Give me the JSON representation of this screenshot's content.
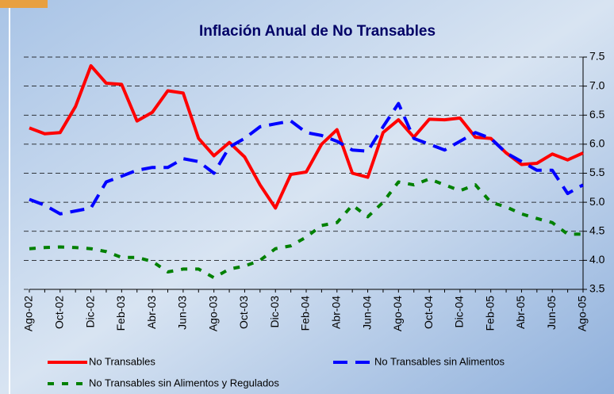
{
  "chart_data": {
    "type": "line",
    "title": "Inflación Anual de No Transables",
    "categories": [
      "Ago-02",
      null,
      "Oct-02",
      null,
      "Dic-02",
      null,
      "Feb-03",
      null,
      "Abr-03",
      null,
      "Jun-03",
      null,
      "Ago-03",
      null,
      "Oct-03",
      null,
      "Dic-03",
      null,
      "Feb-04",
      null,
      "Abr-04",
      null,
      "Jun-04",
      null,
      "Ago-04",
      null,
      "Oct-04",
      null,
      "Dic-04",
      null,
      "Feb-05",
      null,
      "Abr-05",
      null,
      "Jun-05",
      null,
      "Ago-05"
    ],
    "series": [
      {
        "name": "No Transables",
        "color": "#ff0000",
        "dash": "none",
        "values": [
          6.28,
          6.18,
          6.2,
          6.65,
          7.35,
          7.05,
          7.03,
          6.4,
          6.55,
          6.92,
          6.88,
          6.1,
          5.8,
          6.03,
          5.78,
          5.3,
          4.9,
          5.48,
          5.52,
          6.0,
          6.25,
          5.5,
          5.43,
          6.2,
          6.42,
          6.12,
          6.43,
          6.42,
          6.45,
          6.12,
          6.1,
          5.85,
          5.65,
          5.67,
          5.83,
          5.73,
          5.85
        ]
      },
      {
        "name": "No Transables sin Alimentos",
        "color": "#0000ff",
        "dash": "18 10",
        "values": [
          5.05,
          4.95,
          4.8,
          4.85,
          4.9,
          5.35,
          5.45,
          5.55,
          5.6,
          5.6,
          5.75,
          5.7,
          5.5,
          5.95,
          6.1,
          6.3,
          6.35,
          6.4,
          6.2,
          6.15,
          6.05,
          5.9,
          5.88,
          6.3,
          6.7,
          6.1,
          6.0,
          5.9,
          6.05,
          6.2,
          6.1,
          5.85,
          5.7,
          5.55,
          5.55,
          5.15,
          5.3
        ]
      },
      {
        "name": "No Transables sin Alimentos y Regulados",
        "color": "#008000",
        "dash": "8 10",
        "values": [
          4.2,
          4.22,
          4.23,
          4.22,
          4.2,
          4.15,
          4.05,
          4.05,
          3.98,
          3.8,
          3.85,
          3.85,
          3.7,
          3.85,
          3.9,
          4.0,
          4.2,
          4.25,
          4.4,
          4.6,
          4.65,
          4.95,
          4.75,
          5.0,
          5.35,
          5.3,
          5.4,
          5.3,
          5.2,
          5.3,
          5.0,
          4.92,
          4.8,
          4.72,
          4.65,
          4.45,
          4.45
        ]
      }
    ],
    "ylim": [
      3.5,
      7.5
    ],
    "yticks": [
      3.5,
      {
        "value": 4,
        "label": "4.0"
      },
      4.5,
      {
        "value": 5,
        "label": "5.0"
      },
      5.5,
      {
        "value": 6,
        "label": "6.0"
      },
      6.5,
      {
        "value": 7,
        "label": "7.0"
      },
      7.5
    ],
    "grid": true,
    "legend": "bottom"
  }
}
